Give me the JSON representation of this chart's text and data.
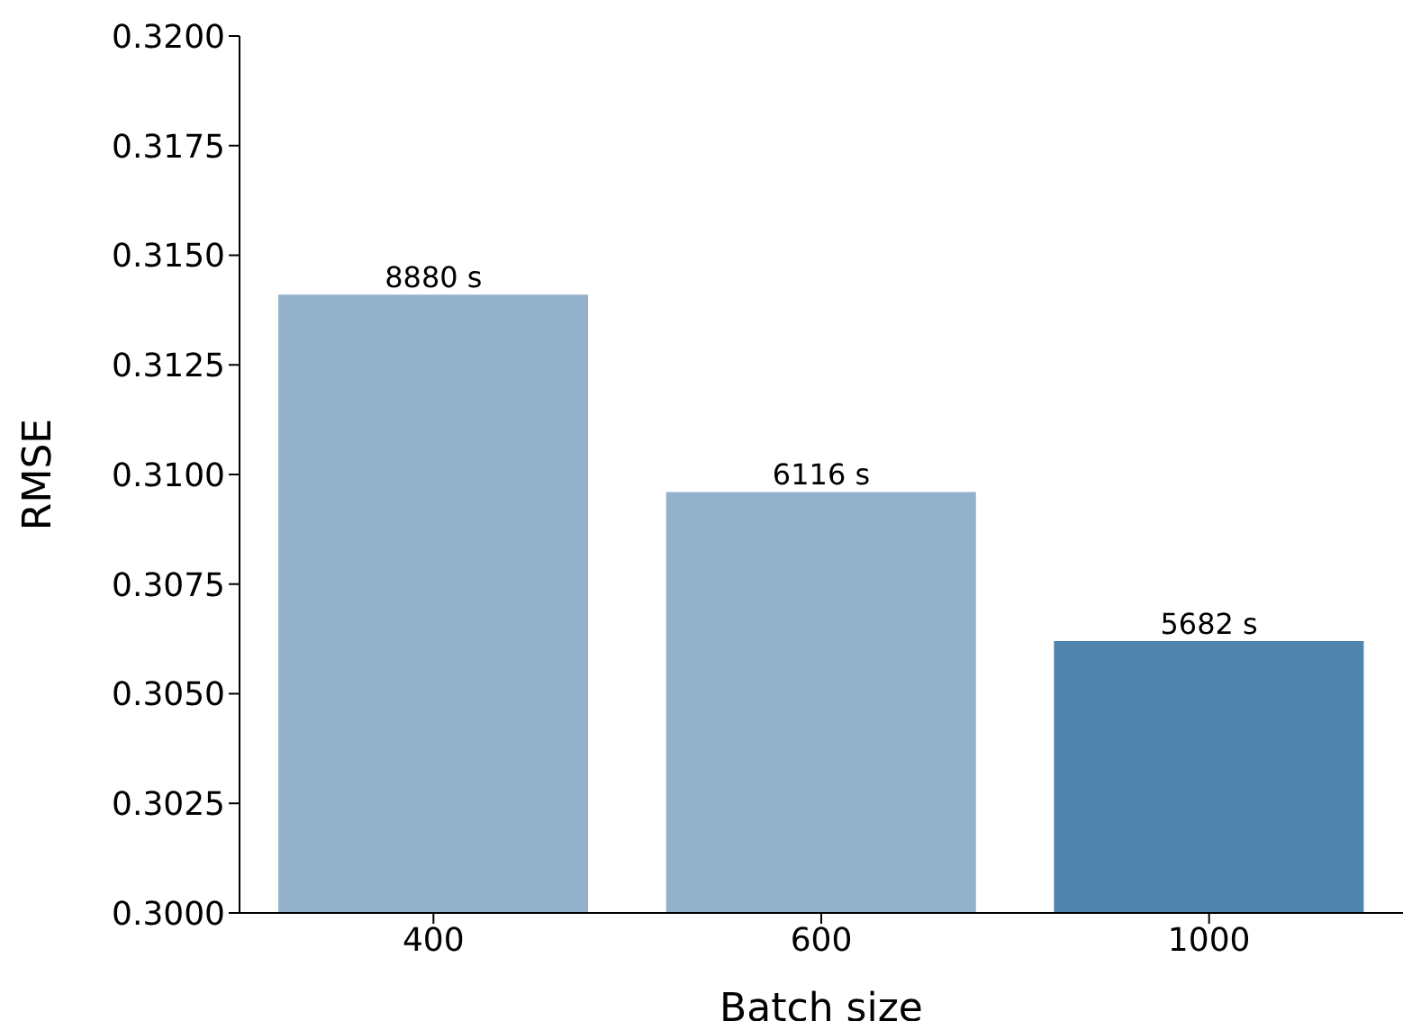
{
  "chart_data": {
    "type": "bar",
    "xlabel": "Batch size",
    "ylabel": "RMSE",
    "categories": [
      "400",
      "600",
      "1000"
    ],
    "values": [
      0.3141,
      0.3096,
      0.3062
    ],
    "colors": [
      "#93b1cb",
      "#93b1cb",
      "#4f84ad"
    ],
    "annotations": [
      {
        "text": "8880 s",
        "x": "400",
        "y": 0.3141
      },
      {
        "text": "6116 s",
        "x": "600",
        "y": 0.3096
      },
      {
        "text": "5682 s",
        "x": "1000",
        "y": 0.3062
      }
    ],
    "ylim": [
      0.3,
      0.32
    ],
    "yticks": [
      {
        "value": 0.3,
        "label": "0.3000"
      },
      {
        "value": 0.3025,
        "label": "0.3025"
      },
      {
        "value": 0.305,
        "label": "0.3050"
      },
      {
        "value": 0.3075,
        "label": "0.3075"
      },
      {
        "value": 0.31,
        "label": "0.3100"
      },
      {
        "value": 0.3125,
        "label": "0.3125"
      },
      {
        "value": 0.315,
        "label": "0.3150"
      },
      {
        "value": 0.3175,
        "label": "0.3175"
      },
      {
        "value": 0.32,
        "label": "0.3200"
      }
    ],
    "grid": false
  }
}
